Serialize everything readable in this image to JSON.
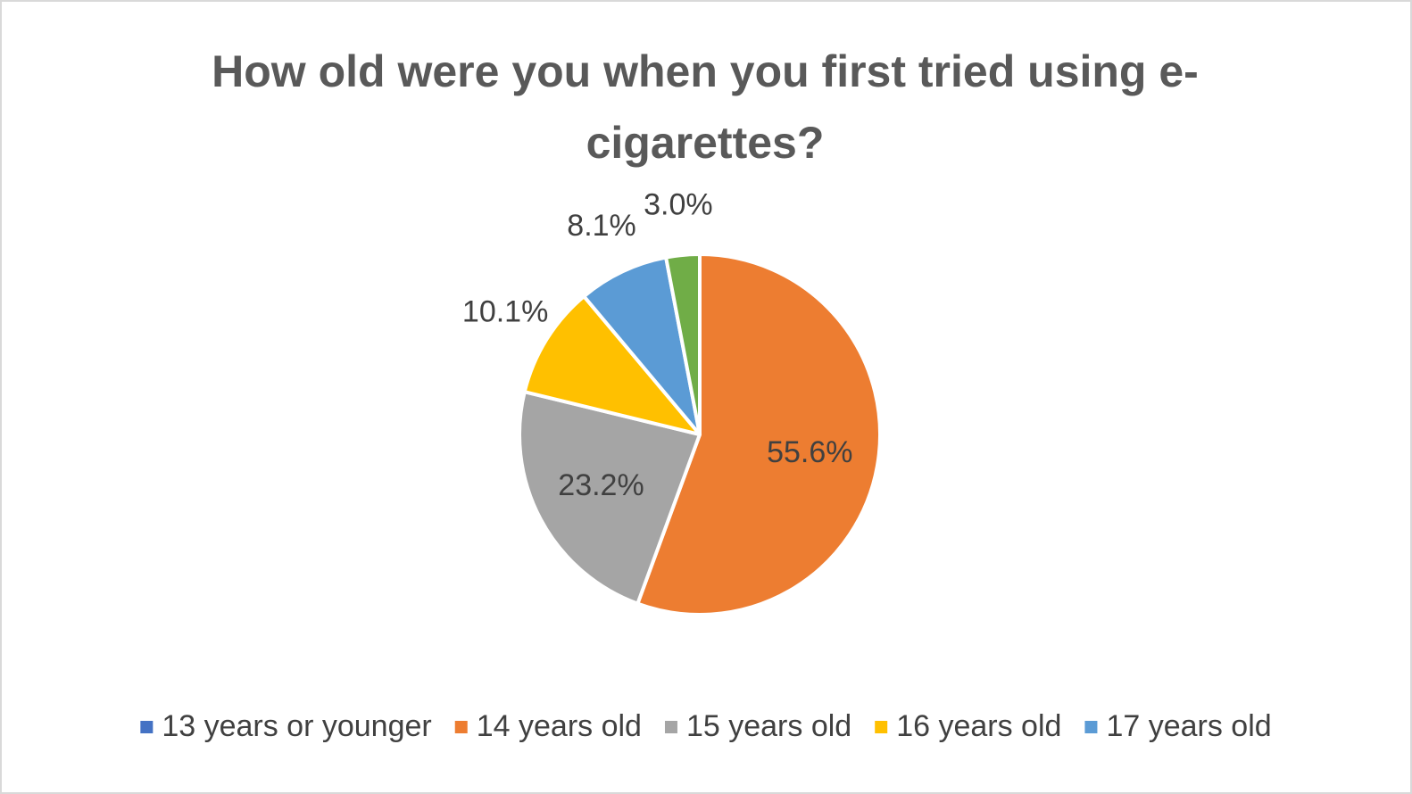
{
  "chart_data": {
    "type": "pie",
    "title": "How old were you when you first tried using e-cigarettes?",
    "categories": [
      "13 years or younger",
      "14 years old",
      "15 years old",
      "16 years old",
      "17 years old",
      null
    ],
    "values": [
      0,
      55.6,
      23.2,
      10.1,
      8.1,
      3.0
    ],
    "value_labels": [
      null,
      "55.6%",
      "23.2%",
      "10.1%",
      "8.1%",
      "3.0%"
    ],
    "colors": [
      "#4472c4",
      "#ed7d31",
      "#a5a5a5",
      "#ffc000",
      "#5b9bd5",
      "#70ad47"
    ],
    "legend": "bottom"
  }
}
